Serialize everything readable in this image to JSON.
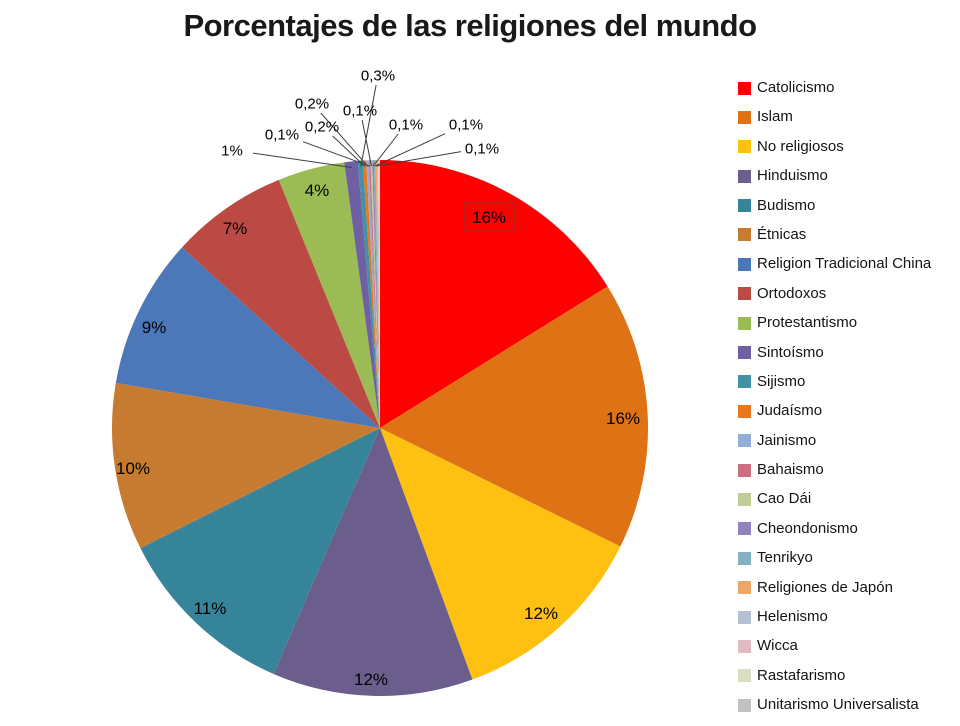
{
  "chart_data": {
    "type": "pie",
    "title": "Porcentajes de las religiones del mundo",
    "legend_position": "right",
    "background": "#FFFFFF",
    "label_number_format": "percent with Spanish decimal comma",
    "slices": [
      {
        "name": "Catolicismo",
        "value": 16,
        "label": "16%",
        "color": "#FE0000",
        "selected": true
      },
      {
        "name": "Islam",
        "value": 16,
        "label": "16%",
        "color": "#DF7214"
      },
      {
        "name": "No religiosos",
        "value": 12,
        "label": "12%",
        "color": "#FEC111"
      },
      {
        "name": "Hinduismo",
        "value": 12,
        "label": "12%",
        "color": "#6B5E8C"
      },
      {
        "name": "Budismo",
        "value": 11,
        "label": "11%",
        "color": "#35849A"
      },
      {
        "name": "Étnicas",
        "value": 10,
        "label": "10%",
        "color": "#C77B30"
      },
      {
        "name": "Religion Tradicional China",
        "value": 9,
        "label": "9%",
        "color": "#4C77B8"
      },
      {
        "name": "Ortodoxos",
        "value": 7,
        "label": "7%",
        "color": "#BB4A45"
      },
      {
        "name": "Protestantismo",
        "value": 4,
        "label": "4%",
        "color": "#9BBB55"
      },
      {
        "name": "Sintoísmo",
        "value": 0.8,
        "label": "1%",
        "color": "#6E60A2"
      },
      {
        "name": "Sijismo",
        "value": 0.3,
        "label": "0,3%",
        "color": "#4192A5"
      },
      {
        "name": "Judaísmo",
        "value": 0.2,
        "label": "0,2%",
        "color": "#E8781F"
      },
      {
        "name": "Jainismo",
        "value": 0.15,
        "label": "0,2%",
        "color": "#92AFD7"
      },
      {
        "name": "Bahaismo",
        "value": 0.1,
        "label": "0,1%",
        "color": "#CC6F82"
      },
      {
        "name": "Cao Dái",
        "value": 0.1,
        "label": "0,1%",
        "color": "#C1CD97"
      },
      {
        "name": "Cheondonismo",
        "value": 0.1,
        "label": "0,1%",
        "color": "#9083BC"
      },
      {
        "name": "Tenrikyo",
        "value": 0.1,
        "label": "0,1%",
        "color": "#84B2C0"
      },
      {
        "name": "Religiones de Japón",
        "value": 0.08,
        "label": "0,1%",
        "color": "#ECA766"
      },
      {
        "name": "Helenismo",
        "value": 0.06,
        "label": "",
        "color": "#B3C1D3"
      },
      {
        "name": "Wicca",
        "value": 0.04,
        "label": "",
        "color": "#E1BBC4"
      },
      {
        "name": "Rastafarismo",
        "value": 0.04,
        "label": "",
        "color": "#D8DEC0"
      },
      {
        "name": "Unitarismo Universalista",
        "value": 0.04,
        "label": "",
        "color": "#C2C2C5"
      }
    ],
    "colors": {
      "selection_box": "#9E2F28",
      "leader_line": "#3D3D3D",
      "label_text": "#000000",
      "title_text": "#191919",
      "legend_text": "#141414"
    }
  }
}
